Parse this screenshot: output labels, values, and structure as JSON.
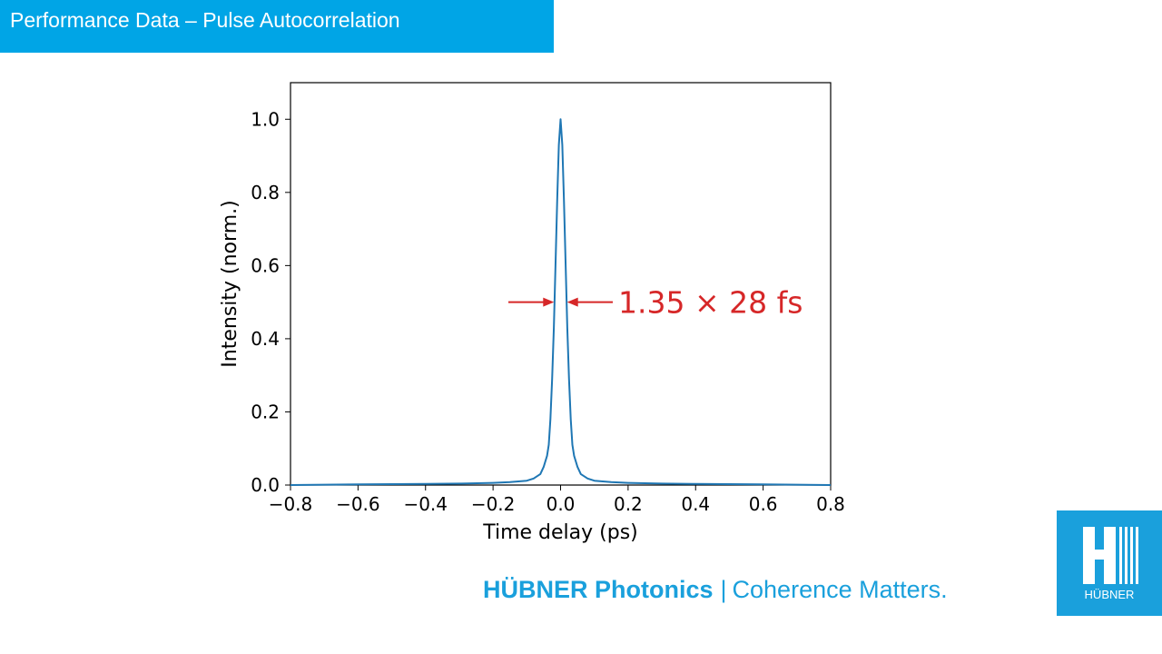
{
  "header": {
    "title": "Performance Data – Pulse Autocorrelation"
  },
  "chart_data": {
    "type": "line",
    "xlabel": "Time delay (ps)",
    "ylabel": "Intensity (norm.)",
    "xlim": [
      -0.8,
      0.8
    ],
    "ylim": [
      0,
      1.1
    ],
    "xticks": [
      "−0.8",
      "−0.6",
      "−0.4",
      "−0.2",
      "0.0",
      "0.2",
      "0.4",
      "0.6",
      "0.8"
    ],
    "xtick_values": [
      -0.8,
      -0.6,
      -0.4,
      -0.2,
      0.0,
      0.2,
      0.4,
      0.6,
      0.8
    ],
    "yticks": [
      "0.0",
      "0.2",
      "0.4",
      "0.6",
      "0.8",
      "1.0"
    ],
    "ytick_values": [
      0.0,
      0.2,
      0.4,
      0.6,
      0.8,
      1.0
    ],
    "grid": false,
    "series": [
      {
        "color": "#1f77b4",
        "x": [
          -0.8,
          -0.6,
          -0.4,
          -0.3,
          -0.2,
          -0.15,
          -0.1,
          -0.08,
          -0.06,
          -0.05,
          -0.04,
          -0.035,
          -0.03,
          -0.025,
          -0.02,
          -0.015,
          -0.01,
          -0.005,
          0.0,
          0.005,
          0.01,
          0.015,
          0.02,
          0.025,
          0.03,
          0.035,
          0.04,
          0.05,
          0.06,
          0.08,
          0.1,
          0.15,
          0.2,
          0.3,
          0.4,
          0.6,
          0.8
        ],
        "y": [
          0.0,
          0.002,
          0.003,
          0.004,
          0.006,
          0.008,
          0.012,
          0.018,
          0.03,
          0.05,
          0.08,
          0.11,
          0.18,
          0.29,
          0.43,
          0.6,
          0.78,
          0.93,
          1.0,
          0.93,
          0.78,
          0.6,
          0.43,
          0.29,
          0.18,
          0.11,
          0.08,
          0.05,
          0.03,
          0.018,
          0.012,
          0.008,
          0.006,
          0.004,
          0.003,
          0.002,
          0.0
        ]
      }
    ],
    "annotation": {
      "text": "1.35 × 28 fs",
      "color": "#d62728",
      "y": 0.5
    }
  },
  "footer": {
    "brand": "HÜBNER Photonics",
    "separator": "|",
    "tagline": "Coherence Matters."
  },
  "logo": {
    "text": "HÜBNER"
  }
}
